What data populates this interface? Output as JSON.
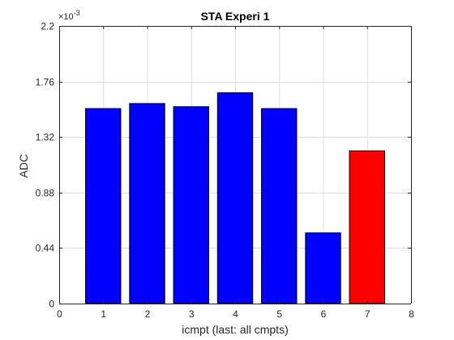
{
  "chart_data": {
    "type": "bar",
    "title": "STA Experi 1",
    "xlabel": "icmpt (last: all cmpts)",
    "ylabel": "ADC",
    "y_exponent_prefix": "×10",
    "y_exponent_power": "-3",
    "xlim": [
      0,
      8
    ],
    "ylim": [
      0,
      2.2
    ],
    "x_ticks": [
      0,
      1,
      2,
      3,
      4,
      5,
      6,
      7,
      8
    ],
    "x_tick_labels": [
      "0",
      "1",
      "2",
      "3",
      "4",
      "5",
      "6",
      "7",
      "8"
    ],
    "y_ticks": [
      0,
      0.44,
      0.88,
      1.32,
      1.76,
      2.2
    ],
    "y_tick_labels": [
      "0",
      "0.44",
      "0.88",
      "1.32",
      "1.76",
      "2.2"
    ],
    "grid": true,
    "x": [
      1,
      2,
      3,
      4,
      5,
      6,
      7
    ],
    "values": [
      1.545,
      1.585,
      1.56,
      1.67,
      1.545,
      0.56,
      1.21
    ],
    "bar_colors": [
      "#0000ff",
      "#0000ff",
      "#0000ff",
      "#0000ff",
      "#0000ff",
      "#0000ff",
      "#ff0000"
    ],
    "bar_edge_color": "#000000"
  }
}
